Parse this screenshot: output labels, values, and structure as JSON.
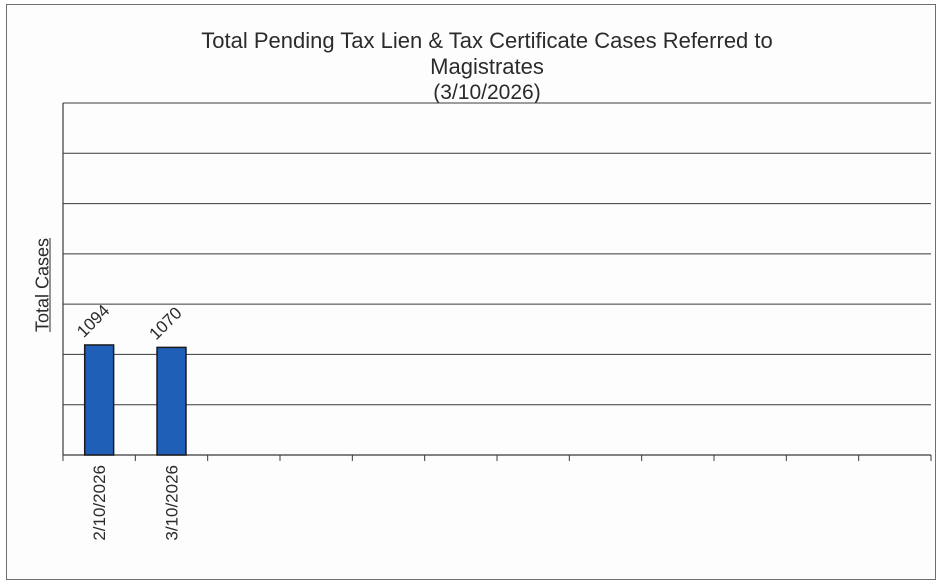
{
  "chart_data": {
    "type": "bar",
    "title": "Total Pending Tax Lien & Tax Certificate Cases Referred to Magistrates",
    "title_lines": [
      "Total Pending Tax Lien & Tax Certificate Cases Referred to",
      "Magistrates"
    ],
    "subtitle": "(3/10/2026)",
    "xlabel": "",
    "ylabel": "Total Cases",
    "categories": [
      "2/10/2026",
      "3/10/2026",
      "",
      "",
      "",
      "",
      "",
      "",
      "",
      "",
      "",
      ""
    ],
    "values": [
      1094,
      1070,
      null,
      null,
      null,
      null,
      null,
      null,
      null,
      null,
      null,
      null
    ],
    "ylim": [
      0,
      3500
    ],
    "grid": true,
    "bar_color": "#1f5fb8",
    "bar_border_color": "#1a1a1a"
  }
}
